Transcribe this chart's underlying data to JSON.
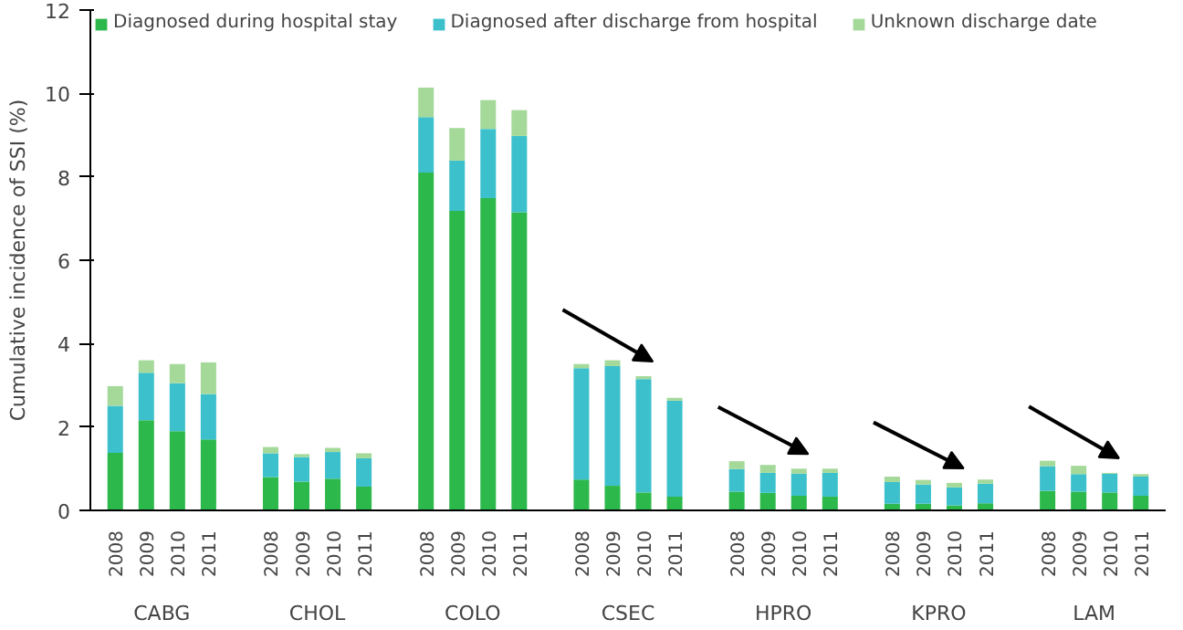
{
  "chart_data": {
    "type": "bar",
    "stacked": true,
    "ylabel": "Cumulative incidence of SSI (%)",
    "categories": [
      "2008",
      "2009",
      "2010",
      "2011",
      "2008",
      "2009",
      "2010",
      "2011",
      "2008",
      "2009",
      "2010",
      "2011",
      "2008",
      "2009",
      "2010",
      "2011",
      "2008",
      "2009",
      "2010",
      "2011",
      "2008",
      "2009",
      "2010",
      "2011",
      "2008",
      "2009",
      "2010",
      "2011"
    ],
    "annotations": [
      "CABG",
      "CHOL",
      "COLO",
      "CSEC",
      "HPRO",
      "KPRO",
      "LAM"
    ],
    "series": [
      {
        "name": "Diagnosed during hospital stay",
        "color": "#2db84b",
        "values": [
          1.38,
          2.16,
          1.9,
          1.7,
          0.8,
          0.69,
          0.76,
          0.57,
          8.1,
          7.18,
          7.49,
          7.15,
          0.74,
          0.59,
          0.43,
          0.33,
          0.45,
          0.42,
          0.35,
          0.33,
          0.16,
          0.16,
          0.12,
          0.17,
          0.47,
          0.45,
          0.43,
          0.35
        ]
      },
      {
        "name": "Diagnosed after discharge from hospital",
        "color": "#3cc0cc",
        "values": [
          1.13,
          1.14,
          1.15,
          1.09,
          0.57,
          0.59,
          0.64,
          0.68,
          1.33,
          1.21,
          1.66,
          1.83,
          2.67,
          2.87,
          2.72,
          2.3,
          0.54,
          0.48,
          0.53,
          0.57,
          0.52,
          0.46,
          0.43,
          0.47,
          0.59,
          0.42,
          0.45,
          0.46
        ]
      },
      {
        "name": "Unknown discharge date",
        "color": "#a4d99a",
        "values": [
          0.47,
          0.3,
          0.46,
          0.76,
          0.15,
          0.07,
          0.1,
          0.12,
          0.71,
          0.78,
          0.69,
          0.62,
          0.1,
          0.14,
          0.07,
          0.07,
          0.19,
          0.19,
          0.12,
          0.1,
          0.13,
          0.11,
          0.11,
          0.1,
          0.13,
          0.2,
          0.02,
          0.06
        ]
      }
    ],
    "ylim": [
      0,
      12
    ],
    "yticks": [
      0,
      2,
      4,
      6,
      8,
      10,
      12
    ],
    "grid": false,
    "legend": "top"
  }
}
